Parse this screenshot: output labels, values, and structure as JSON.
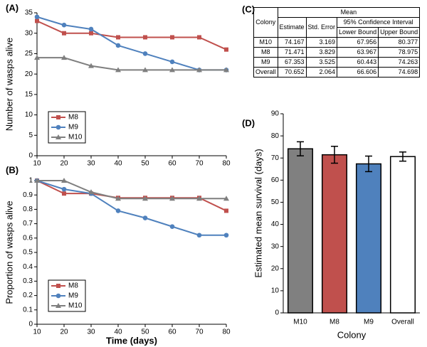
{
  "chart_data": [
    {
      "type": "line",
      "label": "(A)",
      "ylabel": "Number of wasps alive",
      "x": [
        10,
        20,
        30,
        40,
        50,
        60,
        70,
        80
      ],
      "xlim": [
        10,
        80
      ],
      "xticks": [
        10,
        20,
        30,
        40,
        50,
        60,
        70,
        80
      ],
      "ylim": [
        0,
        35
      ],
      "yticks": [
        0,
        5,
        10,
        15,
        20,
        25,
        30,
        35
      ],
      "legend": "lower left",
      "series": [
        {
          "name": "M8",
          "color": "#c0504d",
          "marker": "square",
          "values": [
            33,
            30,
            30,
            29,
            29,
            29,
            29,
            26
          ]
        },
        {
          "name": "M9",
          "color": "#4f81bd",
          "marker": "circle",
          "values": [
            34,
            32,
            31,
            27,
            25,
            23,
            21,
            21
          ]
        },
        {
          "name": "M10",
          "color": "#7f7f7f",
          "marker": "triangle",
          "values": [
            24,
            24,
            22,
            21,
            21,
            21,
            21,
            21
          ]
        }
      ]
    },
    {
      "type": "line",
      "label": "(B)",
      "ylabel": "Proportion of wasps alive",
      "xlabel": "Time (days)",
      "x": [
        10,
        20,
        30,
        40,
        50,
        60,
        70,
        80
      ],
      "xlim": [
        10,
        80
      ],
      "xticks": [
        10,
        20,
        30,
        40,
        50,
        60,
        70,
        80
      ],
      "ylim": [
        0,
        1
      ],
      "yticks": [
        0,
        0.1,
        0.2,
        0.3,
        0.4,
        0.5,
        0.6,
        0.7,
        0.8,
        0.9,
        1
      ],
      "legend": "lower left",
      "series": [
        {
          "name": "M8",
          "color": "#c0504d",
          "marker": "square",
          "values": [
            1,
            0.91,
            0.91,
            0.88,
            0.88,
            0.88,
            0.88,
            0.79
          ]
        },
        {
          "name": "M9",
          "color": "#4f81bd",
          "marker": "circle",
          "values": [
            1,
            0.94,
            0.91,
            0.79,
            0.74,
            0.68,
            0.62,
            0.62
          ]
        },
        {
          "name": "M10",
          "color": "#7f7f7f",
          "marker": "triangle",
          "values": [
            1,
            1,
            0.92,
            0.875,
            0.875,
            0.875,
            0.875,
            0.875
          ]
        }
      ]
    },
    {
      "type": "bar",
      "label": "(D)",
      "ylabel": "Estimated mean survival (days)",
      "xlabel": "Colony",
      "categories": [
        "M10",
        "M8",
        "M9",
        "Overall"
      ],
      "values": [
        74.167,
        71.471,
        67.353,
        70.652
      ],
      "errors": [
        3.169,
        3.829,
        3.525,
        2.064
      ],
      "colors": [
        "#808080",
        "#c0504d",
        "#4f81bd",
        "#ffffff"
      ],
      "ylim": [
        0,
        90
      ],
      "yticks": [
        0,
        10,
        20,
        30,
        40,
        50,
        60,
        70,
        80,
        90
      ]
    }
  ],
  "table": {
    "label": "(C)",
    "colony": "Colony",
    "mean": "Mean",
    "estimate": "Estimate",
    "std_error": "Std. Error",
    "ci": "95% Confidence Interval",
    "lower": "Lower Bound",
    "upper": "Upper Bound",
    "rows": [
      [
        "M10",
        "74.167",
        "3.169",
        "67.956",
        "80.377"
      ],
      [
        "M8",
        "71.471",
        "3.829",
        "63.967",
        "78.975"
      ],
      [
        "M9",
        "67.353",
        "3.525",
        "60.443",
        "74.263"
      ],
      [
        "Overall",
        "70.652",
        "2.064",
        "66.606",
        "74.698"
      ]
    ]
  }
}
